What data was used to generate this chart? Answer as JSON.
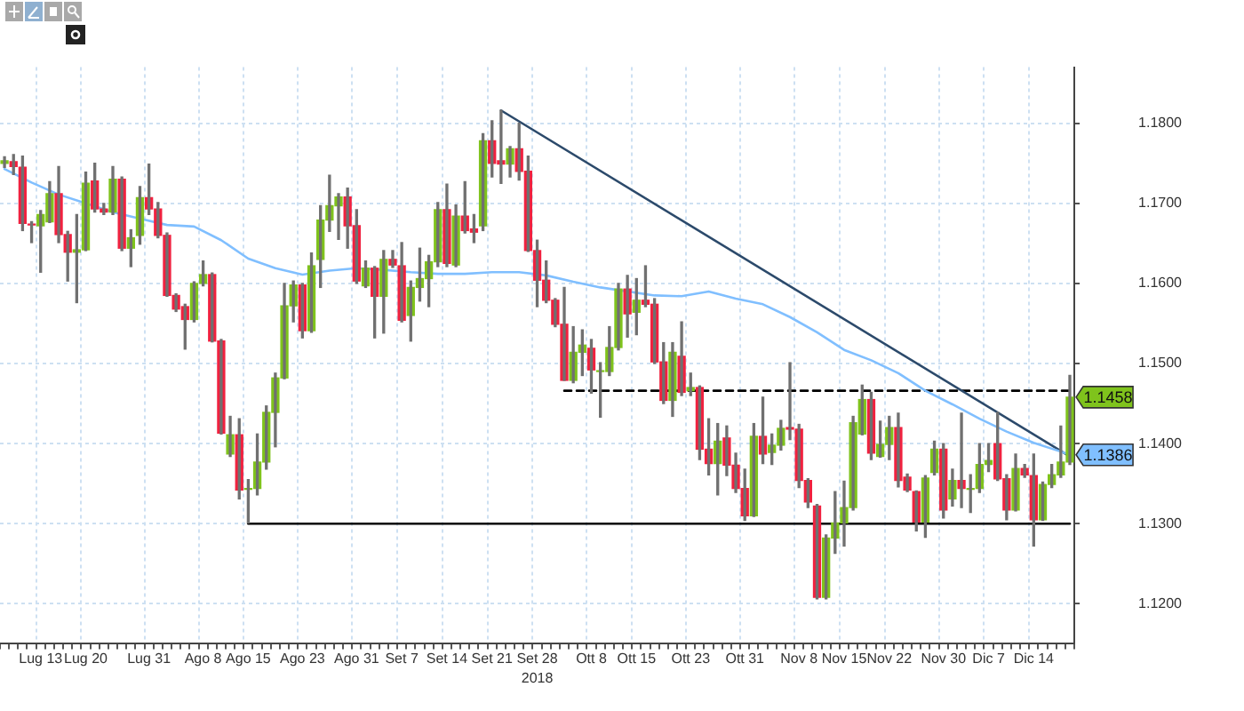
{
  "chart_data": {
    "type": "candlestick",
    "xlabel": "2018",
    "categories": [
      null,
      null,
      null,
      null,
      "Lug 13",
      null,
      null,
      null,
      null,
      "Lug 20",
      null,
      null,
      null,
      null,
      null,
      null,
      "Lug 31",
      null,
      null,
      null,
      null,
      null,
      "Ago 8",
      null,
      null,
      null,
      null,
      "Ago 15",
      null,
      null,
      null,
      null,
      null,
      "Ago 23",
      null,
      null,
      null,
      null,
      null,
      "Ago 31",
      null,
      null,
      null,
      null,
      "Set 7",
      null,
      null,
      null,
      null,
      "Set 14",
      null,
      null,
      null,
      null,
      "Set 21",
      null,
      null,
      null,
      null,
      "Set 28",
      null,
      null,
      null,
      null,
      null,
      "Ott 8",
      null,
      null,
      null,
      null,
      "Ott 15",
      null,
      null,
      null,
      null,
      null,
      "Ott 23",
      null,
      null,
      null,
      null,
      null,
      "Ott 31",
      null,
      null,
      null,
      null,
      null,
      "Nov 8",
      null,
      null,
      null,
      null,
      "Nov 15",
      null,
      null,
      null,
      null,
      "Nov 22",
      null,
      null,
      null,
      null,
      null,
      "Nov 30",
      null,
      null,
      null,
      null,
      "Dic 7",
      null,
      null,
      null,
      null,
      "Dic 14",
      null,
      null,
      null,
      null
    ],
    "ohlc": [
      [
        1.175,
        1.1758,
        1.1745,
        1.1753
      ],
      [
        1.1752,
        1.1761,
        1.1736,
        1.1746
      ],
      [
        1.1745,
        1.1759,
        1.1666,
        1.1675
      ],
      [
        1.1674,
        1.1677,
        1.1651,
        1.1673
      ],
      [
        1.1672,
        1.1691,
        1.1614,
        1.1686
      ],
      [
        1.1677,
        1.1727,
        1.1676,
        1.1712
      ],
      [
        1.1712,
        1.1746,
        1.1651,
        1.1661
      ],
      [
        1.1661,
        1.1665,
        1.1603,
        1.1639
      ],
      [
        1.1639,
        1.1686,
        1.1576,
        1.1642
      ],
      [
        1.1642,
        1.1739,
        1.1641,
        1.1725
      ],
      [
        1.1728,
        1.175,
        1.1689,
        1.1693
      ],
      [
        1.1693,
        1.17,
        1.1686,
        1.1689
      ],
      [
        1.1689,
        1.1746,
        1.1686,
        1.173
      ],
      [
        1.173,
        1.1733,
        1.1641,
        1.1644
      ],
      [
        1.1644,
        1.1667,
        1.1621,
        1.1657
      ],
      [
        1.166,
        1.1721,
        1.1649,
        1.1707
      ],
      [
        1.1707,
        1.1749,
        1.1686,
        1.1693
      ],
      [
        1.1693,
        1.1701,
        1.1657,
        1.166
      ],
      [
        1.166,
        1.1663,
        1.1584,
        1.1585
      ],
      [
        1.1585,
        1.1587,
        1.1565,
        1.1568
      ],
      [
        1.1571,
        1.1574,
        1.1518,
        1.1555
      ],
      [
        1.1555,
        1.1602,
        1.1552,
        1.16
      ],
      [
        1.16,
        1.1628,
        1.1597,
        1.1611
      ],
      [
        1.1611,
        1.1613,
        1.1527,
        1.1528
      ],
      [
        1.1528,
        1.153,
        1.1412,
        1.1413
      ],
      [
        1.1387,
        1.1434,
        1.1384,
        1.1411
      ],
      [
        1.1411,
        1.1431,
        1.1331,
        1.1342
      ],
      [
        1.1343,
        1.1355,
        1.1301,
        1.1344
      ],
      [
        1.1344,
        1.1412,
        1.1336,
        1.1377
      ],
      [
        1.1377,
        1.1447,
        1.1368,
        1.1439
      ],
      [
        1.1439,
        1.1488,
        1.1396,
        1.1482
      ],
      [
        1.1482,
        1.16,
        1.1481,
        1.1572
      ],
      [
        1.1572,
        1.1603,
        1.1552,
        1.1598
      ],
      [
        1.1598,
        1.16,
        1.1532,
        1.1541
      ],
      [
        1.1541,
        1.1638,
        1.1539,
        1.1622
      ],
      [
        1.163,
        1.1697,
        1.1595,
        1.1679
      ],
      [
        1.1679,
        1.1735,
        1.1665,
        1.1697
      ],
      [
        1.1697,
        1.1712,
        1.1655,
        1.1708
      ],
      [
        1.1708,
        1.1719,
        1.1644,
        1.1672
      ],
      [
        1.1672,
        1.1692,
        1.16,
        1.1603
      ],
      [
        1.1597,
        1.1628,
        1.1595,
        1.1619
      ],
      [
        1.1619,
        1.1621,
        1.1532,
        1.1584
      ],
      [
        1.1584,
        1.1641,
        1.1538,
        1.163
      ],
      [
        1.163,
        1.1641,
        1.162,
        1.1623
      ],
      [
        1.1622,
        1.1651,
        1.1552,
        1.1554
      ],
      [
        1.156,
        1.1603,
        1.1528,
        1.1595
      ],
      [
        1.1595,
        1.1644,
        1.1578,
        1.1606
      ],
      [
        1.1606,
        1.1635,
        1.1571,
        1.1627
      ],
      [
        1.1627,
        1.1701,
        1.1621,
        1.1692
      ],
      [
        1.1692,
        1.1724,
        1.1621,
        1.1625
      ],
      [
        1.1623,
        1.1698,
        1.1621,
        1.1684
      ],
      [
        1.1684,
        1.1727,
        1.1663,
        1.1666
      ],
      [
        1.1668,
        1.1686,
        1.1651,
        1.1664
      ],
      [
        1.1672,
        1.1787,
        1.1666,
        1.1778
      ],
      [
        1.1778,
        1.1803,
        1.1733,
        1.175
      ],
      [
        1.1753,
        1.1816,
        1.1725,
        1.1749
      ],
      [
        1.1749,
        1.1771,
        1.1733,
        1.1768
      ],
      [
        1.1768,
        1.18,
        1.1729,
        1.174
      ],
      [
        1.174,
        1.1759,
        1.164,
        1.1641
      ],
      [
        1.1641,
        1.1654,
        1.1571,
        1.1604
      ],
      [
        1.1604,
        1.1628,
        1.1576,
        1.1579
      ],
      [
        1.1579,
        1.1581,
        1.1546,
        1.1549
      ],
      [
        1.1549,
        1.1595,
        1.1479,
        1.1479
      ],
      [
        1.1479,
        1.1546,
        1.1476,
        1.1514
      ],
      [
        1.1514,
        1.1542,
        1.1485,
        1.1523
      ],
      [
        1.1519,
        1.153,
        1.1463,
        1.1492
      ],
      [
        1.149,
        1.1501,
        1.1433,
        1.1491
      ],
      [
        1.149,
        1.1546,
        1.1485,
        1.152
      ],
      [
        1.152,
        1.16,
        1.1517,
        1.1593
      ],
      [
        1.1593,
        1.161,
        1.1533,
        1.1562
      ],
      [
        1.1564,
        1.1606,
        1.1536,
        1.1579
      ],
      [
        1.1579,
        1.1622,
        1.1571,
        1.1574
      ],
      [
        1.1574,
        1.1581,
        1.15,
        1.1502
      ],
      [
        1.1502,
        1.1526,
        1.145,
        1.1454
      ],
      [
        1.1454,
        1.1526,
        1.1434,
        1.1514
      ],
      [
        1.1509,
        1.1552,
        1.146,
        1.1464
      ],
      [
        1.1466,
        1.1488,
        1.146,
        1.147
      ],
      [
        1.147,
        1.1472,
        1.138,
        1.1393
      ],
      [
        1.1393,
        1.1431,
        1.1361,
        1.1375
      ],
      [
        1.1375,
        1.1425,
        1.1336,
        1.1403
      ],
      [
        1.1407,
        1.1422,
        1.136,
        1.1373
      ],
      [
        1.1373,
        1.1388,
        1.1339,
        1.1344
      ],
      [
        1.1344,
        1.1368,
        1.1304,
        1.131
      ],
      [
        1.131,
        1.1425,
        1.1309,
        1.1409
      ],
      [
        1.1409,
        1.1458,
        1.1375,
        1.1387
      ],
      [
        1.1389,
        1.1412,
        1.1374,
        1.1398
      ],
      [
        1.1398,
        1.1429,
        1.1392,
        1.1419
      ],
      [
        1.142,
        1.1501,
        1.1405,
        1.1418
      ],
      [
        1.1418,
        1.1424,
        1.1345,
        1.1354
      ],
      [
        1.1354,
        1.1356,
        1.132,
        1.1327
      ],
      [
        1.1322,
        1.1324,
        1.1206,
        1.1208
      ],
      [
        1.1208,
        1.1286,
        1.1206,
        1.1282
      ],
      [
        1.1282,
        1.134,
        1.1263,
        1.1301
      ],
      [
        1.1301,
        1.1353,
        1.1272,
        1.132
      ],
      [
        1.132,
        1.1434,
        1.1317,
        1.1426
      ],
      [
        1.1412,
        1.1473,
        1.1411,
        1.1455
      ],
      [
        1.1455,
        1.1464,
        1.138,
        1.1388
      ],
      [
        1.1384,
        1.1428,
        1.1383,
        1.1399
      ],
      [
        1.1399,
        1.1434,
        1.138,
        1.142
      ],
      [
        1.142,
        1.1438,
        1.1346,
        1.1354
      ],
      [
        1.1358,
        1.1362,
        1.134,
        1.1342
      ],
      [
        1.134,
        1.1341,
        1.1291,
        1.1302
      ],
      [
        1.1302,
        1.136,
        1.1283,
        1.1357
      ],
      [
        1.1364,
        1.1403,
        1.1361,
        1.1393
      ],
      [
        1.1393,
        1.14,
        1.1307,
        1.1317
      ],
      [
        1.1331,
        1.1368,
        1.1322,
        1.1354
      ],
      [
        1.1354,
        1.1438,
        1.132,
        1.1344
      ],
      [
        1.1343,
        1.1361,
        1.1314,
        1.1344
      ],
      [
        1.1344,
        1.14,
        1.1339,
        1.1374
      ],
      [
        1.1374,
        1.14,
        1.1365,
        1.1379
      ],
      [
        1.14,
        1.1439,
        1.1354,
        1.1356
      ],
      [
        1.1356,
        1.1361,
        1.1305,
        1.1317
      ],
      [
        1.1317,
        1.1387,
        1.1316,
        1.1369
      ],
      [
        1.1369,
        1.1374,
        1.1358,
        1.1361
      ],
      [
        1.136,
        1.1387,
        1.1272,
        1.1305
      ],
      [
        1.1305,
        1.1352,
        1.1304,
        1.1349
      ],
      [
        1.1349,
        1.1374,
        1.1345,
        1.1361
      ],
      [
        1.1361,
        1.1422,
        1.1358,
        1.1377
      ],
      [
        1.1377,
        1.1485,
        1.1374,
        1.1458
      ]
    ],
    "colors": [
      "#7fc31c",
      "#f0213f",
      "#f0213f",
      "#f0213f",
      "#7fc31c",
      "#7fc31c",
      "#f0213f",
      "#f0213f",
      "#7fc31c",
      "#7fc31c",
      "#f0213f",
      "#f0213f",
      "#7fc31c",
      "#f0213f",
      "#7fc31c",
      "#7fc31c",
      "#f0213f",
      "#f0213f",
      "#f0213f",
      "#f0213f",
      "#f0213f",
      "#7fc31c",
      "#7fc31c",
      "#f0213f",
      "#f0213f",
      "#7fc31c",
      "#f0213f",
      "#7fc31c",
      "#7fc31c",
      "#7fc31c",
      "#7fc31c",
      "#7fc31c",
      "#7fc31c",
      "#f0213f",
      "#7fc31c",
      "#7fc31c",
      "#7fc31c",
      "#7fc31c",
      "#f0213f",
      "#f0213f",
      "#7fc31c",
      "#f0213f",
      "#7fc31c",
      "#f0213f",
      "#f0213f",
      "#7fc31c",
      "#7fc31c",
      "#7fc31c",
      "#7fc31c",
      "#f0213f",
      "#7fc31c",
      "#f0213f",
      "#f0213f",
      "#7fc31c",
      "#f0213f",
      "#f0213f",
      "#7fc31c",
      "#f0213f",
      "#f0213f",
      "#f0213f",
      "#f0213f",
      "#f0213f",
      "#f0213f",
      "#7fc31c",
      "#7fc31c",
      "#f0213f",
      "#7fc31c",
      "#7fc31c",
      "#7fc31c",
      "#f0213f",
      "#7fc31c",
      "#f0213f",
      "#f0213f",
      "#f0213f",
      "#7fc31c",
      "#f0213f",
      "#7fc31c",
      "#f0213f",
      "#f0213f",
      "#7fc31c",
      "#f0213f",
      "#f0213f",
      "#f0213f",
      "#7fc31c",
      "#f0213f",
      "#7fc31c",
      "#7fc31c",
      "#f0213f",
      "#f0213f",
      "#f0213f",
      "#f0213f",
      "#7fc31c",
      "#7fc31c",
      "#7fc31c",
      "#7fc31c",
      "#7fc31c",
      "#f0213f",
      "#7fc31c",
      "#7fc31c",
      "#f0213f",
      "#f0213f",
      "#f0213f",
      "#7fc31c",
      "#7fc31c",
      "#f0213f",
      "#7fc31c",
      "#f0213f",
      "#7fc31c",
      "#7fc31c",
      "#7fc31c",
      "#f0213f",
      "#f0213f",
      "#7fc31c",
      "#f0213f",
      "#f0213f",
      "#7fc31c",
      "#7fc31c",
      "#7fc31c",
      "#7fc31c"
    ],
    "series": [
      {
        "type": "line",
        "color": "#80bfff",
        "values": [
          1.1743,
          null,
          null,
          1.1726,
          null,
          null,
          1.1711,
          null,
          null,
          1.17,
          null,
          null,
          1.1689,
          null,
          null,
          1.1681,
          null,
          null,
          1.1673,
          null,
          null,
          1.1671,
          null,
          null,
          1.1654,
          null,
          null,
          1.1631,
          null,
          null,
          1.1619,
          null,
          null,
          1.1611,
          null,
          null,
          1.1616,
          null,
          null,
          1.1619,
          null,
          null,
          1.1617,
          null,
          null,
          1.1614,
          null,
          null,
          1.1612,
          null,
          null,
          1.1612,
          null,
          null,
          1.1614,
          null,
          null,
          1.1614,
          null,
          null,
          1.161,
          null,
          null,
          1.1602,
          null,
          null,
          1.1595,
          null,
          null,
          1.159,
          null,
          null,
          1.1585,
          null,
          null,
          1.1584,
          null,
          null,
          1.159,
          null,
          null,
          1.1581,
          null,
          null,
          1.1574,
          null,
          null,
          1.1558,
          null,
          null,
          1.1539,
          null,
          null,
          1.1517,
          null,
          null,
          1.1504,
          null,
          null,
          1.1488,
          null,
          null,
          1.1466,
          null,
          null,
          1.1449,
          null,
          null,
          1.1431,
          null,
          null,
          1.1415,
          null,
          null,
          1.1401,
          null,
          null,
          1.139,
          1.1386
        ],
        "value_labels": [
          null,
          null,
          null,
          null,
          null,
          null,
          null,
          null,
          null,
          null,
          null,
          null,
          null,
          null,
          null,
          null,
          null,
          null,
          null,
          null,
          null,
          null,
          null,
          null,
          null,
          null,
          null,
          null,
          null,
          null,
          null,
          null,
          null,
          null,
          null,
          null,
          null,
          null,
          null,
          null,
          null,
          null,
          null,
          null,
          null,
          null,
          null,
          null,
          null,
          null,
          null,
          null,
          null,
          null,
          null,
          null,
          null,
          null,
          null,
          null,
          null,
          null,
          null,
          null,
          null,
          null,
          null,
          null,
          null,
          null,
          null,
          null,
          null,
          null,
          null,
          null,
          null,
          null,
          null,
          null,
          null,
          null,
          null,
          null,
          null,
          null,
          null,
          null,
          null,
          null,
          null,
          null,
          null,
          null,
          null,
          null,
          null,
          null,
          null,
          null,
          null,
          null,
          null,
          null,
          null,
          null,
          null,
          null,
          null,
          null,
          null,
          null,
          null,
          null,
          null,
          null,
          null,
          null,
          "1.1386"
        ]
      },
      {
        "type": "line",
        "color": "#2c4a6b",
        "values": [
          null,
          null,
          null,
          null,
          null,
          null,
          null,
          null,
          null,
          null,
          null,
          null,
          null,
          null,
          null,
          null,
          null,
          null,
          null,
          null,
          null,
          null,
          null,
          null,
          null,
          null,
          null,
          null,
          null,
          null,
          null,
          null,
          null,
          null,
          null,
          null,
          null,
          null,
          null,
          null,
          null,
          null,
          null,
          null,
          null,
          null,
          null,
          null,
          null,
          null,
          null,
          null,
          null,
          null,
          null,
          1.1816,
          null,
          null,
          null,
          null,
          null,
          null,
          null,
          null,
          null,
          null,
          null,
          null,
          null,
          null,
          null,
          null,
          null,
          null,
          null,
          null,
          null,
          null,
          null,
          null,
          null,
          null,
          null,
          null,
          null,
          null,
          null,
          null,
          null,
          null,
          null,
          null,
          null,
          null,
          null,
          null,
          null,
          null,
          null,
          null,
          null,
          null,
          null,
          null,
          null,
          null,
          null,
          null,
          null,
          null,
          null,
          null,
          null,
          null,
          null,
          null,
          null,
          null,
          1.1384
        ]
      },
      {
        "type": "line",
        "color": "#000000",
        "values": [
          null,
          null,
          null,
          null,
          null,
          null,
          null,
          null,
          null,
          null,
          null,
          null,
          null,
          null,
          null,
          null,
          null,
          null,
          null,
          null,
          null,
          null,
          null,
          null,
          null,
          null,
          null,
          1.13,
          null,
          null,
          null,
          null,
          null,
          null,
          null,
          null,
          null,
          null,
          null,
          null,
          null,
          null,
          null,
          null,
          null,
          null,
          null,
          null,
          null,
          null,
          null,
          null,
          null,
          null,
          null,
          null,
          null,
          null,
          null,
          null,
          null,
          null,
          null,
          null,
          null,
          null,
          null,
          null,
          null,
          null,
          null,
          null,
          null,
          null,
          null,
          null,
          null,
          null,
          null,
          null,
          null,
          null,
          null,
          null,
          null,
          null,
          null,
          null,
          null,
          null,
          null,
          null,
          null,
          null,
          null,
          null,
          null,
          null,
          null,
          null,
          null,
          null,
          null,
          null,
          null,
          null,
          null,
          null,
          null,
          null,
          null,
          null,
          null,
          null,
          null,
          null,
          null,
          null,
          1.13
        ]
      },
      {
        "type": "line",
        "color": "#000000",
        "line_style": "dashed",
        "values": [
          null,
          null,
          null,
          null,
          null,
          null,
          null,
          null,
          null,
          null,
          null,
          null,
          null,
          null,
          null,
          null,
          null,
          null,
          null,
          null,
          null,
          null,
          null,
          null,
          null,
          null,
          null,
          null,
          null,
          null,
          null,
          null,
          null,
          null,
          null,
          null,
          null,
          null,
          null,
          null,
          null,
          null,
          null,
          null,
          null,
          null,
          null,
          null,
          null,
          null,
          null,
          null,
          null,
          null,
          null,
          null,
          null,
          null,
          null,
          null,
          null,
          null,
          1.1466,
          null,
          null,
          null,
          null,
          null,
          null,
          null,
          null,
          null,
          null,
          null,
          null,
          null,
          null,
          null,
          null,
          null,
          null,
          null,
          null,
          null,
          null,
          null,
          null,
          null,
          null,
          null,
          null,
          null,
          null,
          null,
          null,
          null,
          null,
          null,
          null,
          null,
          null,
          null,
          null,
          null,
          null,
          null,
          null,
          null,
          null,
          null,
          null,
          null,
          null,
          null,
          null,
          null,
          null,
          null,
          1.1466
        ]
      }
    ],
    "ylim": [
      1.115,
      1.187
    ],
    "yticks": [
      {
        "value": 1.12,
        "label": "1.1200"
      },
      {
        "value": 1.13,
        "label": "1.1300"
      },
      {
        "value": 1.14,
        "label": "1.1400"
      },
      {
        "value": 1.15,
        "label": "1.1500"
      },
      {
        "value": 1.16,
        "label": "1.1600"
      },
      {
        "value": 1.17,
        "label": "1.1700"
      },
      {
        "value": 1.18,
        "label": "1.1800"
      }
    ],
    "value_labels": [
      null,
      null,
      null,
      null,
      null,
      null,
      null,
      null,
      null,
      null,
      null,
      null,
      null,
      null,
      null,
      null,
      null,
      null,
      null,
      null,
      null,
      null,
      null,
      null,
      null,
      null,
      null,
      null,
      null,
      null,
      null,
      null,
      null,
      null,
      null,
      null,
      null,
      null,
      null,
      null,
      null,
      null,
      null,
      null,
      null,
      null,
      null,
      null,
      null,
      null,
      null,
      null,
      null,
      null,
      null,
      null,
      null,
      null,
      null,
      null,
      null,
      null,
      null,
      null,
      null,
      null,
      null,
      null,
      null,
      null,
      null,
      null,
      null,
      null,
      null,
      null,
      null,
      null,
      null,
      null,
      null,
      null,
      null,
      null,
      null,
      null,
      null,
      null,
      null,
      null,
      null,
      null,
      null,
      null,
      null,
      null,
      null,
      null,
      null,
      null,
      null,
      null,
      null,
      null,
      null,
      null,
      null,
      null,
      null,
      null,
      null,
      null,
      null,
      null,
      null,
      null,
      null,
      null,
      "1.1458"
    ],
    "grid": true,
    "marker": "none"
  }
}
